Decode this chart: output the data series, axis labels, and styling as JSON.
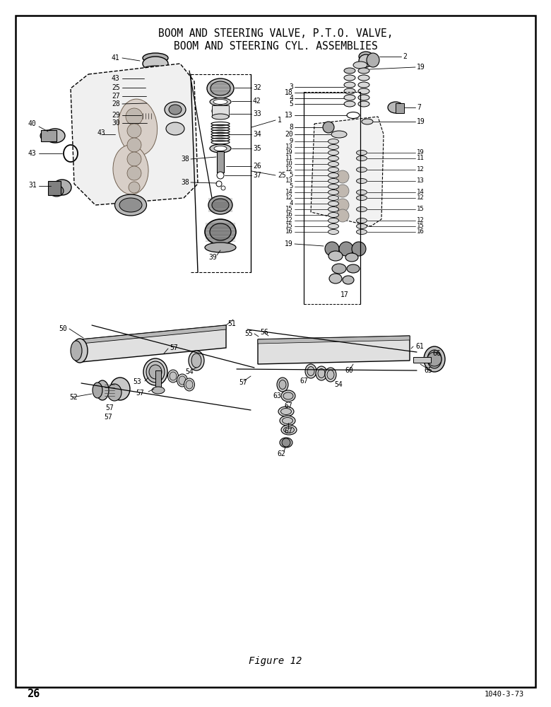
{
  "title_line1": "BOOM AND STEERING VALVE, P.T.O. VALVE,",
  "title_line2": "BOOM AND STEERING CYL. ASSEMBLIES",
  "figure_label": "Figure 12",
  "page_number": "26",
  "doc_number": "1040-3-73",
  "bg": "#ffffff",
  "fg": "#000000",
  "gray1": "#c8c8c8",
  "gray2": "#a0a0a0",
  "gray3": "#808080",
  "gray4": "#606060",
  "gray5": "#e8e8e8",
  "gray6": "#d4d4d4",
  "dashed_color": "#444444"
}
